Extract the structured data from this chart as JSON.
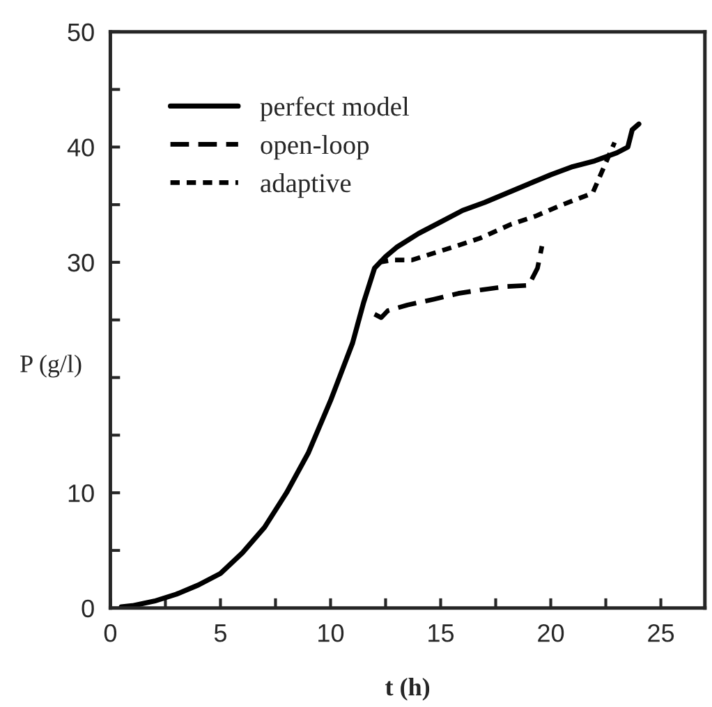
{
  "chart_data": {
    "type": "line",
    "xlabel": "t (h)",
    "ylabel": "P (g/l)",
    "xlim": [
      0,
      27
    ],
    "ylim": [
      0,
      50
    ],
    "xticks": [
      0,
      {
        "value": 2.5,
        "label": null
      },
      5,
      {
        "value": 7.5,
        "label": null
      },
      10,
      {
        "value": 12.5,
        "label": null
      },
      15,
      {
        "value": 17.5,
        "label": null
      },
      20,
      {
        "value": 22.5,
        "label": null
      },
      25
    ],
    "yticks": [
      0,
      {
        "value": 5,
        "label": null
      },
      10,
      {
        "value": 15,
        "label": null
      },
      {
        "value": 20,
        "label": null
      },
      {
        "value": 25,
        "label": null
      },
      30,
      {
        "value": 35,
        "label": null
      },
      40,
      {
        "value": 45,
        "label": null
      },
      50
    ],
    "grid": false,
    "legend": "top left",
    "series": [
      {
        "name": "perfect model",
        "color": "#000000",
        "line_style": "solid",
        "x": [
          0.5,
          1,
          2,
          3,
          4,
          5,
          6,
          7,
          8,
          9,
          10,
          11,
          11.5,
          12,
          12.5,
          13,
          14,
          15,
          16,
          17,
          18,
          19,
          20,
          21,
          22,
          23,
          23.5,
          23.7,
          24
        ],
        "values": [
          0.1,
          0.2,
          0.6,
          1.2,
          2,
          3,
          4.8,
          7,
          10,
          13.5,
          18,
          23,
          26.5,
          29.5,
          30.5,
          31.3,
          32.5,
          33.5,
          34.5,
          35.2,
          36,
          36.8,
          37.6,
          38.3,
          38.8,
          39.5,
          40,
          41.5,
          42
        ]
      },
      {
        "name": "open-loop",
        "color": "#000000",
        "line_style": "dashed",
        "x": [
          12,
          12.3,
          12.6,
          13.5,
          14.7,
          15.8,
          16.8,
          18,
          19,
          19.4,
          19.6
        ],
        "values": [
          25.5,
          25.2,
          25.8,
          26.3,
          26.8,
          27.3,
          27.6,
          27.9,
          28,
          29.5,
          31.4
        ]
      },
      {
        "name": "adaptive",
        "color": "#000000",
        "line_style": "dotted",
        "x": [
          12.2,
          12.8,
          13.7,
          14.7,
          15.7,
          16.8,
          18.2,
          19.3,
          20.4,
          21.9,
          22.9
        ],
        "values": [
          30,
          30.2,
          30.2,
          30.8,
          31.4,
          32.1,
          33.3,
          34,
          34.9,
          36,
          40.4
        ]
      }
    ]
  }
}
